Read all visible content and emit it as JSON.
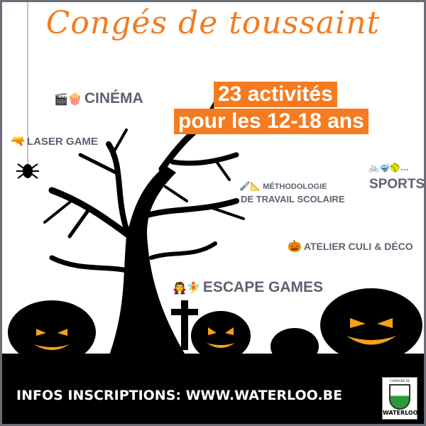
{
  "title": "Congés de toussaint",
  "headline": {
    "line1": "23 activités",
    "line2": "pour les 12-18 ans"
  },
  "activities": [
    {
      "label": "CINÉMA",
      "icons": "🎬🍿"
    },
    {
      "label": "LASER GAME",
      "icons": "🔫"
    },
    {
      "label": "SPORTS",
      "icons": "🚲🤿🥎…"
    },
    {
      "label_line1": "MÉTHODOLOGIE",
      "label_line2": "DE TRAVAIL SCOLAIRE",
      "icons": "🖌📐"
    },
    {
      "label": "ATELIER CULI & DÉCO",
      "icons": "🎃"
    },
    {
      "label": "ESCAPE GAMES",
      "icons": "🧛🧚"
    }
  ],
  "footer": {
    "info": "INFOS INSCRIPTIONS: WWW.WATERLOO.BE"
  },
  "logo": {
    "top": "COMMUNE DE",
    "name": "WATERLOO"
  },
  "colors": {
    "accent": "#f47b20",
    "text": "#5f6170",
    "band": "#000000"
  }
}
